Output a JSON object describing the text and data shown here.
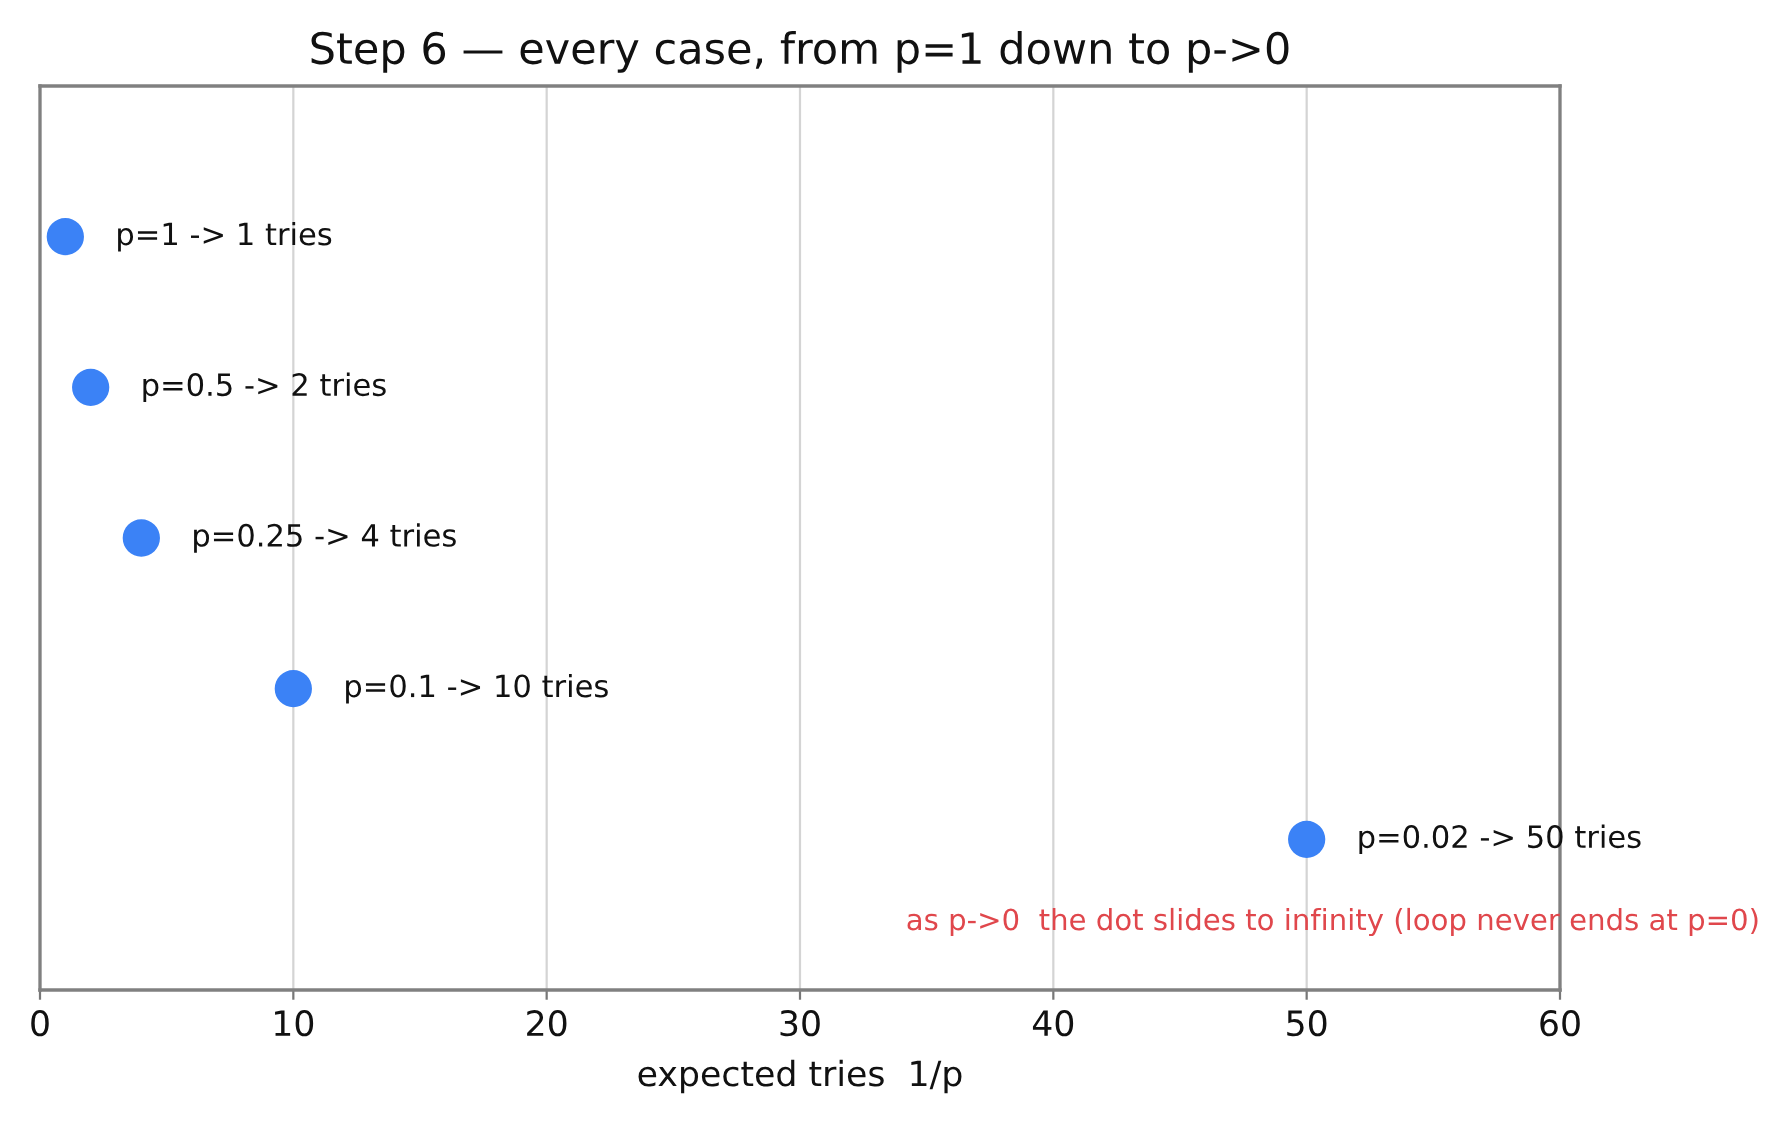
{
  "chart_data": {
    "type": "scatter",
    "orientation": "horizontal",
    "title": "Step 6 — every case, from p=1 down to p->0",
    "xlabel": "expected tries  1/p",
    "categories": [
      null,
      null,
      null,
      null,
      null
    ],
    "values": [
      1,
      2,
      4,
      10,
      50
    ],
    "value_labels": [
      "p=1 -> 1 tries",
      "p=0.5 -> 2 tries",
      "p=0.25 -> 4 tries",
      "p=0.1 -> 10 tries",
      "p=0.02 -> 50 tries"
    ],
    "color": "#3b82f6",
    "marker": "circle",
    "xlim": [
      0,
      60
    ],
    "xticks": [
      0,
      10,
      20,
      30,
      40,
      50,
      60
    ],
    "grid": "x",
    "tick_labels": "x",
    "annotations": [
      "as p->0  the dot slides to infinity (loop never ends at p=0)"
    ]
  }
}
